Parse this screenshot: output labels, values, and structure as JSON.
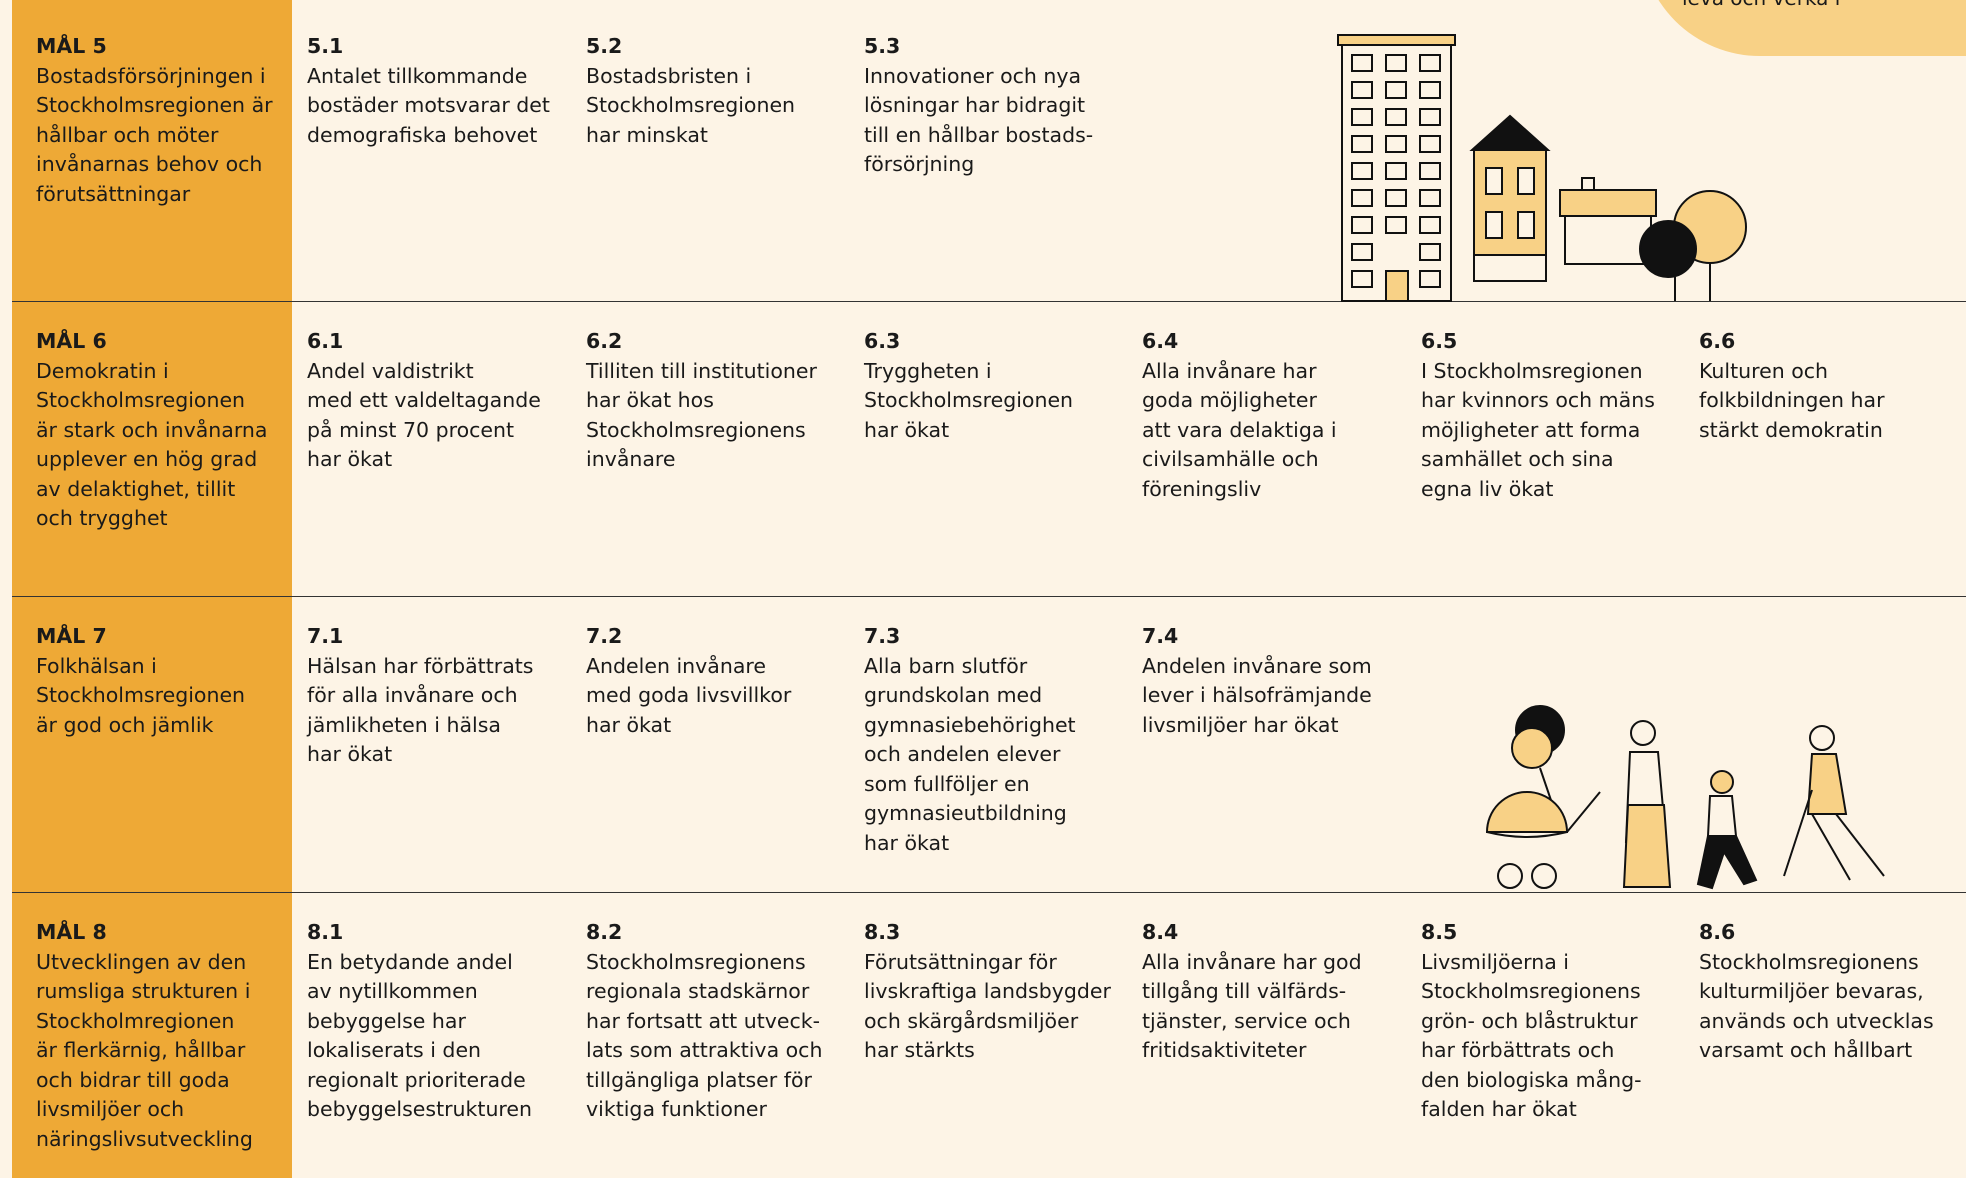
{
  "corner_text": "leva och verka i",
  "goals": [
    {
      "label": "MÅL 5",
      "lines": [
        "Bostadsförsörjningen i",
        "Stockholmsregionen är",
        "hållbar och möter",
        "invånarnas behov och",
        "förutsättningar"
      ],
      "targets": [
        {
          "number": "5.1",
          "lines": [
            "Antalet tillkommande",
            "bostäder motsvarar det",
            "demografiska behovet"
          ]
        },
        {
          "number": "5.2",
          "lines": [
            "Bostadsbristen i",
            "Stockholmsregionen",
            "har minskat"
          ]
        },
        {
          "number": "5.3",
          "lines": [
            "Innovationer och nya",
            "lösningar har bidragit",
            "till en hållbar bostads-",
            "försörjning"
          ]
        }
      ]
    },
    {
      "label": "MÅL 6",
      "lines": [
        "Demokratin i",
        "Stockholmsregionen",
        "är stark och invånarna",
        "upplever en hög grad",
        "av delaktighet, tillit",
        "och trygghet"
      ],
      "targets": [
        {
          "number": "6.1",
          "lines": [
            "Andel valdistrikt",
            "med ett valdeltagande",
            "på minst 70 procent",
            "har ökat"
          ]
        },
        {
          "number": "6.2",
          "lines": [
            "Tilliten till institutioner",
            "har ökat hos",
            "Stockholmsregionens",
            "invånare"
          ]
        },
        {
          "number": "6.3",
          "lines": [
            "Tryggheten i",
            "Stockholmsregionen",
            "har ökat"
          ]
        },
        {
          "number": "6.4",
          "lines": [
            "Alla invånare har",
            "goda möjligheter",
            "att vara delaktiga i",
            "civilsamhälle och",
            "föreningsliv"
          ]
        },
        {
          "number": "6.5",
          "lines": [
            "I Stockholmsregionen",
            "har kvinnors och mäns",
            "möjligheter att forma",
            "samhället och sina",
            "egna liv ökat"
          ]
        },
        {
          "number": "6.6",
          "lines": [
            "Kulturen och",
            "folkbildningen har",
            "stärkt demokratin"
          ]
        }
      ]
    },
    {
      "label": "MÅL 7",
      "lines": [
        "Folkhälsan i",
        "Stockholmsregionen",
        "är god och jämlik"
      ],
      "targets": [
        {
          "number": "7.1",
          "lines": [
            "Hälsan har förbättrats",
            "för alla invånare och",
            "jämlikheten i hälsa",
            "har ökat"
          ]
        },
        {
          "number": "7.2",
          "lines": [
            "Andelen invånare",
            "med goda livsvillkor",
            "har ökat"
          ]
        },
        {
          "number": "7.3",
          "lines": [
            "Alla barn slutför",
            "grundskolan med",
            "gymnasiebehörighet",
            "och andelen elever",
            "som fullföljer en",
            "gymnasieutbildning",
            "har ökat"
          ]
        },
        {
          "number": "7.4",
          "lines": [
            "Andelen invånare som",
            "lever i hälsofrämjande",
            "livsmiljöer har ökat"
          ]
        }
      ]
    },
    {
      "label": "MÅL 8",
      "lines": [
        "Utvecklingen av den",
        "rumsliga strukturen i",
        "Stockholmregionen",
        "är flerkärnig, hållbar",
        "och bidrar till goda",
        "livsmiljöer och",
        "näringslivsutveckling"
      ],
      "targets": [
        {
          "number": "8.1",
          "lines": [
            "En betydande andel",
            "av nytillkommen",
            "bebyggelse har",
            "lokaliserats i den",
            "regionalt prioriterade",
            "bebyggelsestrukturen"
          ]
        },
        {
          "number": "8.2",
          "lines": [
            "Stockholmsregionens",
            "regionala stadskärnor",
            "har fortsatt att utveck-",
            "lats som attraktiva och",
            "tillgängliga platser för",
            "viktiga funktioner"
          ]
        },
        {
          "number": "8.3",
          "lines": [
            "Förutsättningar för",
            "livskraftiga landsbygder",
            "och skärgårdsmiljöer",
            "har stärkts"
          ]
        },
        {
          "number": "8.4",
          "lines": [
            "Alla invånare har god",
            "tillgång till välfärds-",
            "tjänster, service och",
            "fritidsaktiviteter"
          ]
        },
        {
          "number": "8.5",
          "lines": [
            "Livsmiljöerna i",
            "Stockholmsregionens",
            "grön- och blåstruktur",
            "har förbättrats och",
            "den biologiska mång-",
            "falden har ökat"
          ]
        },
        {
          "number": "8.6",
          "lines": [
            "Stockholmsregionens",
            "kulturmiljöer bevaras,",
            "används och utvecklas",
            "varsamt och hållbart"
          ]
        }
      ]
    }
  ]
}
